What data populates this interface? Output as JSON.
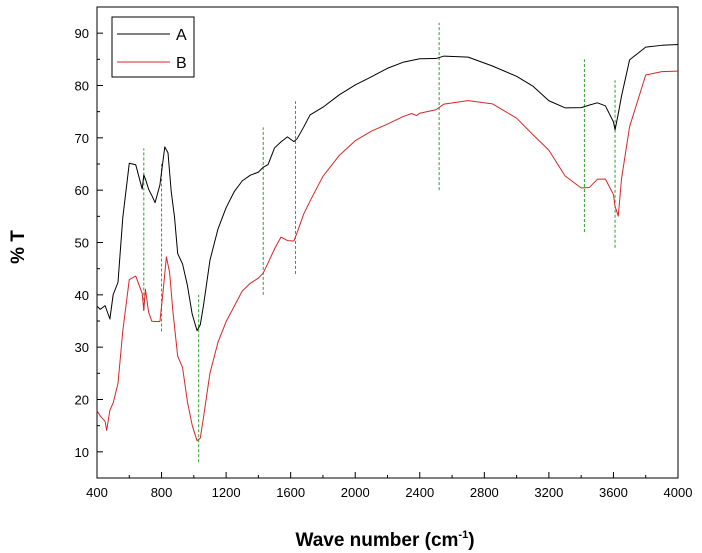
{
  "chart_data": {
    "type": "line",
    "title": "",
    "xlabel": "Wave number (cm",
    "xlabel_sup": "-1",
    "xlabel_close": ")",
    "ylabel": "% T",
    "xlim": [
      400,
      4000
    ],
    "ylim": [
      5,
      95
    ],
    "xticks": [
      400,
      800,
      1200,
      1600,
      2000,
      2400,
      2800,
      3200,
      3600,
      4000
    ],
    "yticks": [
      10,
      20,
      30,
      40,
      50,
      60,
      70,
      80,
      90
    ],
    "grid": false,
    "legend_position": "top-left",
    "series": [
      {
        "name": "A",
        "color": "#000000",
        "x": [
          400,
          420,
          450,
          480,
          500,
          530,
          560,
          600,
          640,
          680,
          690,
          700,
          720,
          740,
          760,
          790,
          820,
          840,
          860,
          880,
          900,
          930,
          960,
          990,
          1020,
          1040,
          1060,
          1100,
          1150,
          1200,
          1250,
          1300,
          1350,
          1400,
          1430,
          1460,
          1500,
          1540,
          1580,
          1620,
          1640,
          1680,
          1720,
          1800,
          1900,
          2000,
          2100,
          2200,
          2300,
          2400,
          2500,
          2550,
          2700,
          2850,
          3000,
          3100,
          3200,
          3300,
          3400,
          3450,
          3500,
          3550,
          3600,
          3610,
          3630,
          3650,
          3700,
          3800,
          3900,
          4000
        ],
        "y": [
          38,
          37.5,
          38,
          35,
          40,
          42,
          55,
          65,
          65,
          60,
          63,
          62,
          60,
          59,
          58,
          61,
          68,
          67,
          60,
          55,
          48,
          46,
          42,
          36,
          33,
          34,
          38,
          47,
          53,
          57,
          60,
          62,
          63,
          63.5,
          64,
          65,
          68,
          69.5,
          70,
          69,
          70,
          72,
          74,
          76,
          78.5,
          80.5,
          82,
          83.5,
          84.5,
          85,
          85,
          85.5,
          85.5,
          84,
          82,
          80,
          77,
          75.5,
          75.5,
          76,
          76.5,
          76,
          73,
          71.5,
          75,
          78,
          85,
          87.5,
          87.8,
          87.8
        ]
      },
      {
        "name": "B",
        "color": "#d62728",
        "x": [
          400,
          420,
          450,
          460,
          480,
          500,
          530,
          560,
          600,
          640,
          680,
          690,
          700,
          720,
          740,
          760,
          790,
          810,
          830,
          850,
          870,
          900,
          930,
          960,
          990,
          1020,
          1040,
          1060,
          1100,
          1150,
          1200,
          1250,
          1300,
          1350,
          1400,
          1430,
          1460,
          1500,
          1540,
          1580,
          1620,
          1640,
          1680,
          1720,
          1800,
          1900,
          2000,
          2100,
          2200,
          2300,
          2350,
          2380,
          2400,
          2500,
          2550,
          2700,
          2850,
          3000,
          3100,
          3200,
          3300,
          3400,
          3450,
          3500,
          3550,
          3600,
          3610,
          3630,
          3650,
          3700,
          3800,
          3900,
          4000
        ],
        "y": [
          18,
          17,
          16,
          14,
          18,
          19.5,
          23,
          33,
          43,
          43.5,
          40,
          37,
          41,
          37,
          35,
          35,
          35,
          41,
          47,
          44,
          37,
          28,
          26,
          20,
          15,
          12,
          12.5,
          17,
          25,
          31,
          35,
          38,
          41,
          42.5,
          43.5,
          44,
          46,
          49,
          51,
          50,
          50.5,
          52,
          55,
          58,
          62.5,
          66.5,
          69.5,
          71.5,
          73,
          74.5,
          75,
          74,
          75,
          75.5,
          76.5,
          77,
          76.5,
          74,
          71,
          68,
          63,
          60.5,
          60.5,
          62,
          62,
          59,
          57,
          55,
          62,
          72,
          82,
          82.8,
          83
        ]
      }
    ],
    "markers": [
      {
        "x": 690,
        "y": [
          37,
          68
        ]
      },
      {
        "x": 800,
        "y": [
          33,
          65
        ]
      },
      {
        "x": 1030,
        "y": [
          8,
          40
        ]
      },
      {
        "x": 1430,
        "y": [
          40,
          72
        ]
      },
      {
        "x": 1630,
        "y": [
          44,
          77
        ]
      },
      {
        "x": 2520,
        "y": [
          60,
          92
        ]
      },
      {
        "x": 3420,
        "y": [
          52,
          85
        ]
      },
      {
        "x": 3610,
        "y": [
          49,
          81
        ]
      }
    ],
    "marker_color": "#2ca02c"
  }
}
